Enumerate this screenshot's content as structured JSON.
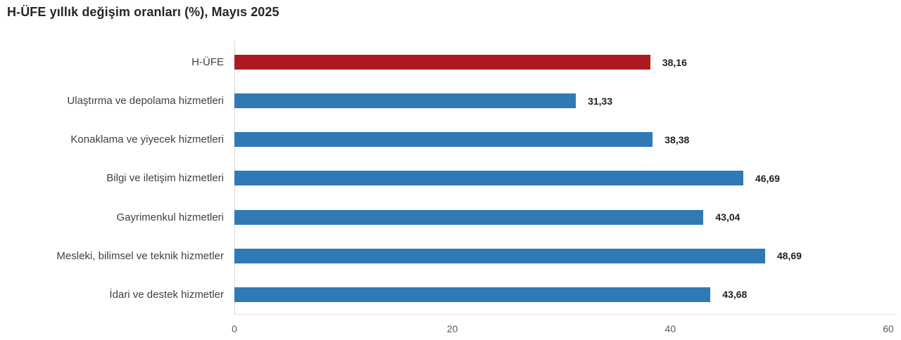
{
  "title": "H-ÜFE yıllık değişim oranları (%), Mayıs 2025",
  "colors": {
    "highlight_bar": "#ae1a21",
    "default_bar": "#2f79b5",
    "axis_line": "#d9d9d9",
    "title_text": "#25252e",
    "category_text": "#404040",
    "value_text": "#1f1f1f",
    "tick_text": "#595959"
  },
  "chart_data": {
    "type": "bar",
    "orientation": "horizontal",
    "title": "H-ÜFE yıllık değişim oranları (%), Mayıs 2025",
    "categories": [
      "H-ÜFE",
      "Ulaştırma ve depolama hizmetleri",
      "Konaklama ve yiyecek hizmetleri",
      "Bilgi ve iletişim hizmetleri",
      "Gayrimenkul hizmetleri",
      "Mesleki, bilimsel ve teknik hizmetler",
      "İdari ve destek hizmetler"
    ],
    "values": [
      38.16,
      31.33,
      38.38,
      46.69,
      43.04,
      48.69,
      43.68
    ],
    "value_labels": [
      "38,16",
      "31,33",
      "38,38",
      "46,69",
      "43,04",
      "48,69",
      "43,68"
    ],
    "bar_colors": [
      "#ae1a21",
      "#2f79b5",
      "#2f79b5",
      "#2f79b5",
      "#2f79b5",
      "#2f79b5",
      "#2f79b5"
    ],
    "xlabel": "",
    "ylabel": "",
    "xlim": [
      0,
      60
    ],
    "x_ticks": [
      0,
      20,
      40,
      60
    ],
    "x_tick_labels": [
      "0",
      "20",
      "40",
      "60"
    ],
    "grid": false,
    "legend": null
  }
}
